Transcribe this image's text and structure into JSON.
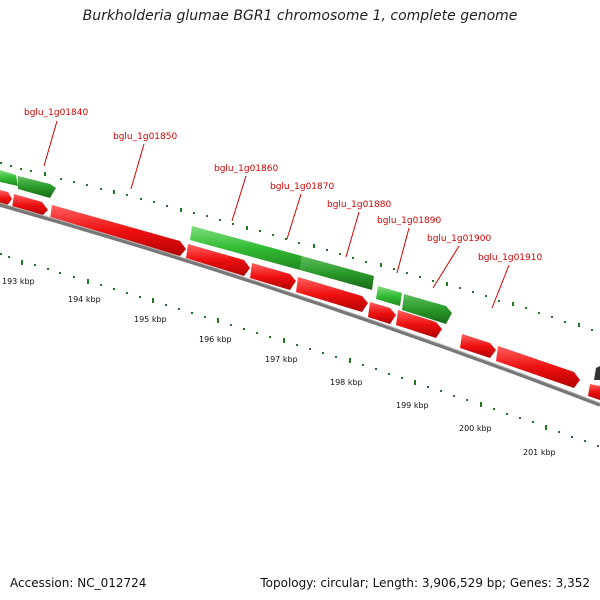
{
  "title": "Burkholderia glumae BGR1 chromosome 1, complete genome",
  "footer": {
    "accession": "Accession: NC_012724",
    "summary": "Topology: circular; Length: 3,906,529 bp; Genes: 3,352"
  },
  "colors": {
    "forward_gene": "#33bb33",
    "reverse_gene": "#ee1111",
    "backbone": "#777777",
    "tick": "#227722",
    "label": "#d40000"
  },
  "gene_labels": [
    "bglu_1g01840",
    "bglu_1g01850",
    "bglu_1g01860",
    "bglu_1g01870",
    "bglu_1g01880",
    "bglu_1g01890",
    "bglu_1g01900",
    "bglu_1g01910"
  ],
  "scale_labels": [
    "193 kbp",
    "194 kbp",
    "195 kbp",
    "196 kbp",
    "197 kbp",
    "198 kbp",
    "199 kbp",
    "200 kbp",
    "201 kbp"
  ]
}
